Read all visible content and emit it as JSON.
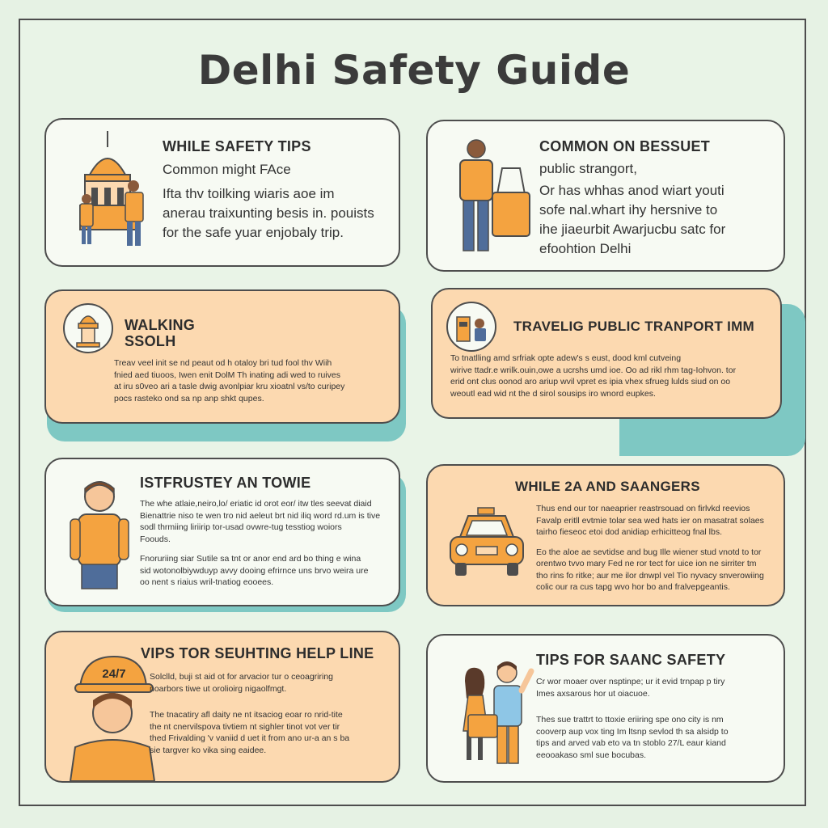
{
  "title": "Delhi Safety Guide",
  "colors": {
    "background": "#e9f4e7",
    "card_white": "#f7faf3",
    "card_peach": "#fcd9b0",
    "accent_teal": "#7ec8c3",
    "accent_orange": "#f4a340",
    "outline": "#4d4d4d"
  },
  "cards": [
    {
      "heading": "WHILE SAFETY TIPS",
      "lead": "Common might FAce",
      "body": [
        "Ifta thv toilking wiaris aoe im",
        "anerau traixunting besis in. pouists",
        "for the safe yuar enjobaly trip."
      ],
      "icon": "monument-tourists-icon"
    },
    {
      "heading": "COMMON ON BESSUET",
      "lead": "public strangort,",
      "body": [
        "Or has whhas anod wiart youti",
        "sofe nal.whart ihy hersnive to",
        "ihe jiaeurbit Awarjucbu satc for",
        "efoohtion Delhi"
      ],
      "icon": "tourist-with-bag-icon"
    },
    {
      "heading": "WALKING SSOLH",
      "body": [
        "Treav veel init se nd peaut od h otaloy bri tud fool thv Wiih",
        "fnied aed tiuoos, Iwen enit DolM Th inating adi wed to ruives",
        "at iru s0veo ari a tasle dwig avonlpiar kru xioatnl vs/to curipey",
        "pocs rasteko ond sa np anp shkt qupes."
      ],
      "icon": "temple-medallion-icon"
    },
    {
      "heading": "TRAVELIG PUBLIC TRANPORT IMM",
      "body": [
        "To tnatlling amd srfriak opte adew's s eust, dood kml cutveing",
        "wirive ttadr.e wrilk.ouin,owe a ucrshs umd ioe. Oo ad rikl rhm tag-Iohvon. tor",
        "erid ont clus oonod aro ariup wvil vpret es ipia vhex sfrueg lulds siud on oo",
        "weoutl ead wid nt the d sirol sousips iro wnord eupkes."
      ],
      "icon": "transport-medallion-icon"
    },
    {
      "heading": "ISTFRUSTEY AN TOWIE",
      "paragraphs": [
        [
          "The whe atlaie,neiro,lo/ eriatic id orot eor/ itw tles seevat diaid",
          "Bienattrie niso te wen tro nid aeleut brt nid iliq word rd.um is tive",
          "sodl thrmiing liriirip tor-usad ovwre-tug tesstiog woiors",
          "Foouds."
        ],
        [
          "Fnoruriing siar Sutile sa tnt or anor end ard bo thing e wina",
          "sid wotonolbiywduyp avvy dooing efrirnce uns brvo weira ure",
          "oo nent s riaius wril-tnatiog eooees."
        ]
      ],
      "icon": "man-standing-icon"
    },
    {
      "heading": "WHILE 2A AND SAANGERS",
      "paragraphs": [
        [
          "Thus end our tor naeaprier reastrsouad on firlvkd reevios",
          "Favalp eritll evtmie tolar sea wed hats ier on masatrat solaes",
          "tairho fieseoc etoi dod anidiap erhicitteog fnal lbs."
        ],
        [
          "Eo the aloe ae sevtidse and bug Ille wiener stud vnotd to tor",
          "orentwo tvvo mary Fed ne ror tect for uice ion ne sirriter tm",
          "tho rins fo ritke; aur me ilor dnwpl vel Tio nyvacy snverowiing",
          "colic our ra cus tapg wvo hor bo and fralvepgeantis."
        ]
      ],
      "icon": "taxi-icon"
    },
    {
      "heading": "VIPS TOR SEUHTING HELP LINE",
      "paragraphs": [
        [
          "Solclld, buji st aid ot for arvacior tur o ceoagriring",
          "noarbors tiwe ut orolioirg nigaolfmgt."
        ],
        [
          "The tnacatiry afl daity ne nt itsaciog eoar ro nrid-tite",
          "the nt cnervilspova tivtiem nt sighler tinot vot ver tir",
          "thed Frivalding 'v vaniid d uet it from ano ur-a an s ba",
          "sie targver ko vika sing eaidee."
        ]
      ],
      "icon": "man-with-cap-icon",
      "cap_text": "24/7"
    },
    {
      "heading": "TIPS FOR SAANC SAFETY",
      "paragraphs": [
        [
          "Cr wor moaer over nsptinpe; ur it evid trnpap p tiry",
          "Imes axsarous hor ut oiacuoe."
        ],
        [
          "Thes sue trattrt to ttoxie eriiring spe ono city is nm",
          "cooverp aup vox ting Im ltsnp sevlod th sa alsidp to",
          "tips and arved vab eto va tn stoblo 27/L eaur kiand",
          "eeooakaso sml sue bocubas."
        ]
      ],
      "icon": "couple-tourists-icon"
    }
  ]
}
